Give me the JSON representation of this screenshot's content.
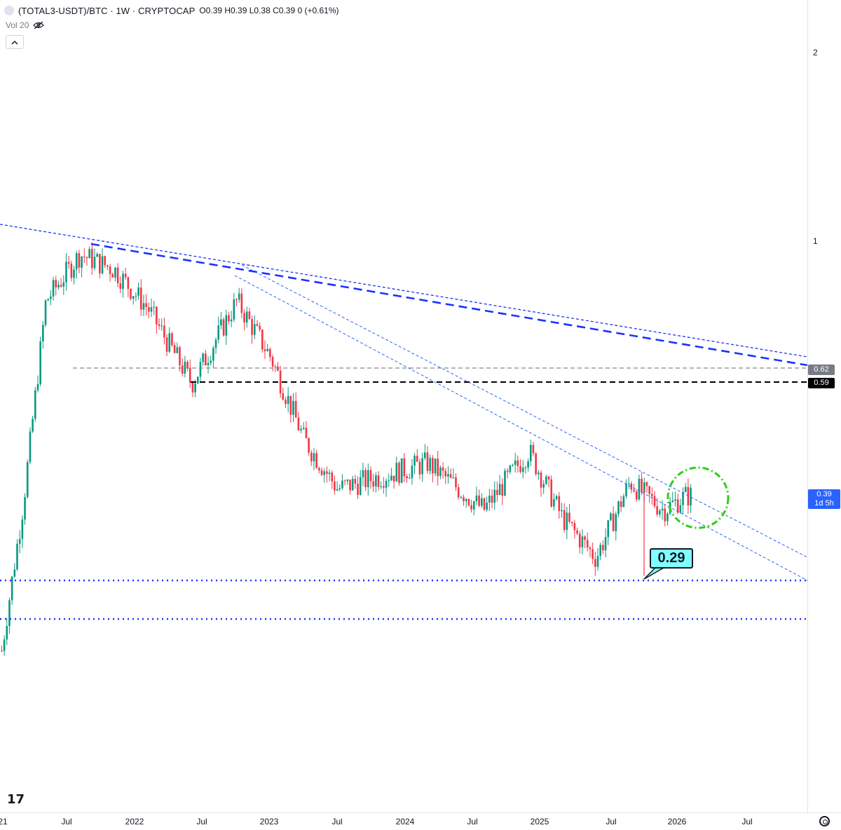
{
  "header": {
    "symbol": "(TOTAL3-USDT)/BTC · 1W · CRYPTOCAP",
    "ohlc_text": "O0.39 H0.39 L0.38 C0.39 0 (+0.61%)",
    "volume_label": "Vol 20",
    "eye_icon": "eye-off-icon",
    "collapse_icon": "chevron-up-icon"
  },
  "price_tags": {
    "level_062": "0.62",
    "level_059": "0.59",
    "current_price": "0.39",
    "countdown": "1d 5h"
  },
  "callout": {
    "text": "0.29"
  },
  "colors": {
    "up": "#089981",
    "down": "#f23645",
    "trend_blue": "#1a33ff",
    "light_blue": "#2962ff",
    "gray_dash": "#888888",
    "circle": "#2ecc15",
    "callout_bg": "#7fffff"
  },
  "chart_data": {
    "type": "candlestick",
    "scale": "log",
    "price_axis_ticks": [
      "2",
      "1"
    ],
    "time_axis_labels": [
      "21",
      "Jul",
      "2022",
      "Jul",
      "2023",
      "Jul",
      "2024",
      "Jul",
      "2025",
      "Jul",
      "2026",
      "Jul"
    ],
    "approx_close_path": [
      {
        "date": "2021-01",
        "close": 0.22
      },
      {
        "date": "2021-03",
        "close": 0.38
      },
      {
        "date": "2021-05",
        "close": 0.8
      },
      {
        "date": "2021-08",
        "close": 0.95
      },
      {
        "date": "2021-11",
        "close": 0.9
      },
      {
        "date": "2022-02",
        "close": 0.78
      },
      {
        "date": "2022-06",
        "close": 0.59
      },
      {
        "date": "2022-10",
        "close": 0.8
      },
      {
        "date": "2023-01",
        "close": 0.65
      },
      {
        "date": "2023-04",
        "close": 0.48
      },
      {
        "date": "2023-07",
        "close": 0.4
      },
      {
        "date": "2023-11",
        "close": 0.42
      },
      {
        "date": "2024-03",
        "close": 0.44
      },
      {
        "date": "2024-08",
        "close": 0.37
      },
      {
        "date": "2024-12",
        "close": 0.46
      },
      {
        "date": "2025-03",
        "close": 0.36
      },
      {
        "date": "2025-06",
        "close": 0.31
      },
      {
        "date": "2025-09",
        "close": 0.41
      },
      {
        "date": "2025-12",
        "close": 0.37
      },
      {
        "date": "2026-02",
        "close": 0.39
      }
    ],
    "horizontal_levels": [
      {
        "value": 0.62,
        "style": "gray-dashed"
      },
      {
        "value": 0.59,
        "style": "black-dashed"
      },
      {
        "value": 0.29,
        "style": "blue-dotted"
      }
    ],
    "last_price": 0.39
  }
}
